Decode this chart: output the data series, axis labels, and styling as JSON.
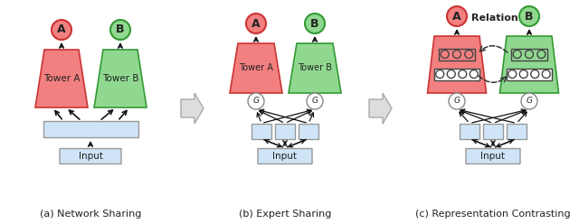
{
  "fig_width": 6.4,
  "fig_height": 2.48,
  "dpi": 100,
  "bg_color": "#ffffff",
  "tower_a_fill": "#f28080",
  "tower_b_fill": "#90d890",
  "tower_a_border": "#cc3333",
  "tower_b_border": "#339933",
  "circle_a_fill": "#f28080",
  "circle_b_fill": "#90d890",
  "input_fill": "#d0e4f8",
  "input_border": "#999999",
  "expert_fill": "#d0e4f8",
  "expert_border": "#999999",
  "gate_fill": "#ffffff",
  "gate_border": "#888888",
  "repr_fill_white": "#ffffff",
  "repr_border": "#555555",
  "arrow_color": "#111111",
  "big_arrow_fill": "#dddddd",
  "big_arrow_border": "#aaaaaa",
  "caption_a": "(a) Network Sharing",
  "caption_b": "(b) Expert Sharing",
  "caption_c": "(c) Representation Contrasting",
  "relation_text": "Relation",
  "label_a": "A",
  "label_b": "B",
  "tower_a_text": "Tower A",
  "tower_b_text": "Tower B",
  "input_text": "Input",
  "gate_text": "G",
  "text_color": "#222222"
}
